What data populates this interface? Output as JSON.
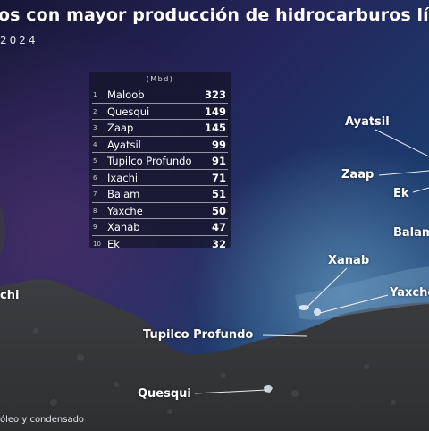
{
  "title": "os con mayor producción de hidrocarburos lí",
  "subtitle": "2024",
  "table": {
    "unit": "(Mbd)",
    "rows": [
      {
        "rank": "1",
        "name": "Maloob",
        "value": "323"
      },
      {
        "rank": "2",
        "name": "Quesqui",
        "value": "149"
      },
      {
        "rank": "3",
        "name": "Zaap",
        "value": "145"
      },
      {
        "rank": "4",
        "name": "Ayatsil",
        "value": "99"
      },
      {
        "rank": "5",
        "name": "Tupilco Profundo",
        "value": "91"
      },
      {
        "rank": "6",
        "name": "Ixachi",
        "value": "71"
      },
      {
        "rank": "7",
        "name": "Balam",
        "value": "51"
      },
      {
        "rank": "8",
        "name": "Yaxche",
        "value": "50"
      },
      {
        "rank": "9",
        "name": "Xanab",
        "value": "47"
      },
      {
        "rank": "10",
        "name": "Ek",
        "value": "32"
      }
    ]
  },
  "map_labels": {
    "ayatsil": "Ayatsil",
    "zaap": "Zaap",
    "ek": "Ek",
    "balam": "Balam",
    "xanab": "Xanab",
    "yaxche": "Yaxche",
    "ixachi": "chi",
    "tupilco": "Tupilco Profundo",
    "quesqui": "Quesqui"
  },
  "footnote": "óleo y condensado",
  "colors": {
    "sea_top": "#141433",
    "sea_mid": "#1f3a66",
    "shallow": "#4f7aa4",
    "land": "#3a3a3c",
    "panel": "#12142680",
    "leader": "#ffffff"
  }
}
